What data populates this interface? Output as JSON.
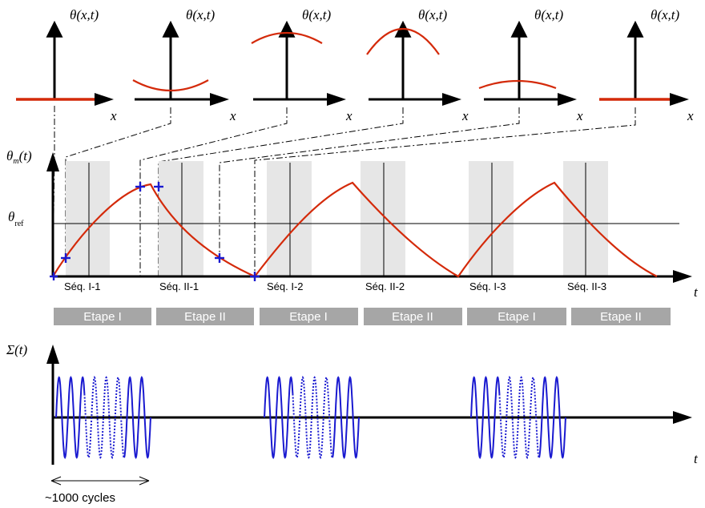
{
  "top_panels": {
    "theta_label": "θ(x,t)",
    "x_label": "x",
    "count": 6
  },
  "middle": {
    "y_label_main": "θ",
    "y_label_sub": "m",
    "y_label_arg": "(t)",
    "ref_label": "θ",
    "ref_sub": "ref",
    "t_label": "t",
    "sequences": [
      "Séq. I-1",
      "Séq. II-1",
      "Séq. I-2",
      "Séq. II-2",
      "Séq. I-3",
      "Séq. II-3"
    ],
    "etapes": [
      "Etape I",
      "Etape II",
      "Etape I",
      "Etape II",
      "Etape I",
      "Etape II"
    ]
  },
  "bottom": {
    "y_label": "Σ(t)",
    "t_label": "t",
    "cycles_label": "~1000 cycles"
  },
  "colors": {
    "temperature_curve": "#d42a0a",
    "signal": "#1a1ad0",
    "shade": "#e6e6e6",
    "etape_bar": "#a6a6a6"
  }
}
